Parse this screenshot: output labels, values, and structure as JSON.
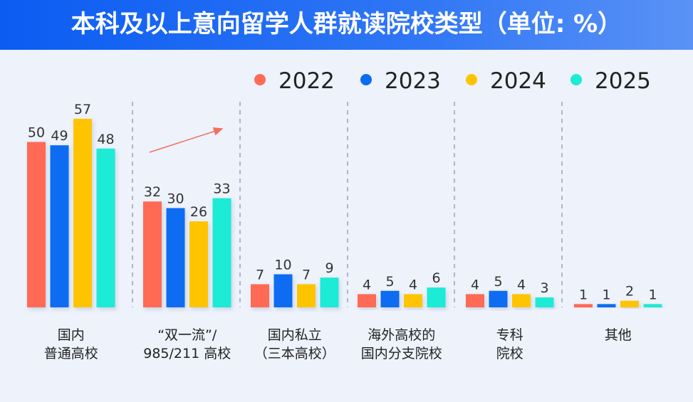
{
  "chart_data": {
    "type": "bar",
    "title": "本科及以上意向留学人群就读院校类型（单位: %）",
    "categories": [
      [
        "国内",
        "普通高校"
      ],
      [
        "“双一流”/",
        "985/211 高校"
      ],
      [
        "国内私立",
        "（三本高校）"
      ],
      [
        "海外高校的",
        "国内分支院校"
      ],
      [
        "专科",
        "院校"
      ],
      [
        "其他"
      ]
    ],
    "series": [
      {
        "name": "2022",
        "color": "#FF6B55",
        "values": [
          50,
          32,
          7,
          4,
          4,
          1
        ]
      },
      {
        "name": "2023",
        "color": "#0A6CF2",
        "values": [
          49,
          30,
          10,
          5,
          5,
          1
        ]
      },
      {
        "name": "2024",
        "color": "#FFC400",
        "values": [
          57,
          26,
          7,
          4,
          4,
          2
        ]
      },
      {
        "name": "2025",
        "color": "#1CEBD5",
        "values": [
          48,
          33,
          9,
          6,
          3,
          1
        ]
      }
    ],
    "legend": "top-right",
    "annotation": "upward trend arrow over “双一流”/985/211 高校 group",
    "grid": false,
    "ylim": [
      0,
      60
    ]
  }
}
